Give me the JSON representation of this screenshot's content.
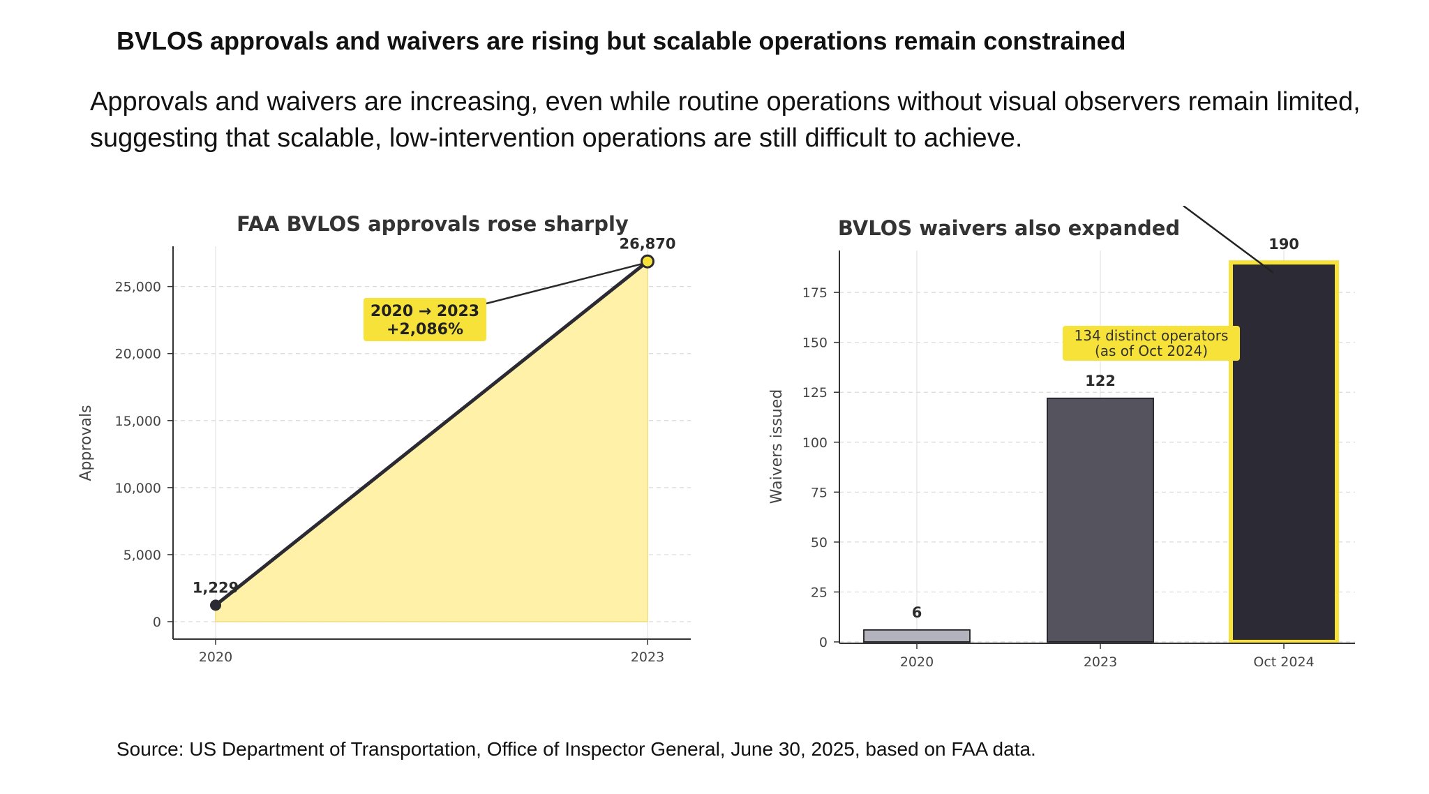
{
  "slide": {
    "title": "BVLOS approvals and waivers are rising but scalable operations remain constrained",
    "subtitle": "Approvals and waivers are increasing, even while routine operations without visual observers remain limited, suggesting that scalable, low-intervention operations are still difficult to achieve.",
    "source": "Source: US Department of Transportation, Office of Inspector General, June 30, 2025, based on FAA data."
  },
  "colors": {
    "highlight": "#f7e23a",
    "area_fill": "#fff2a8",
    "line": "#2b2a33",
    "bar_2020": "#b3b3be",
    "bar_2023": "#55545e",
    "bar_oct2024": "#2c2b35"
  },
  "chart_data": [
    {
      "type": "area",
      "title": "FAA BVLOS approvals rose sharply",
      "xlabel": "",
      "ylabel": "Approvals",
      "x": [
        "2020",
        "2023"
      ],
      "values": [
        1229,
        26870
      ],
      "data_labels": [
        "1,229",
        "26,870"
      ],
      "ylim": [
        0,
        28000
      ],
      "yticks": [
        0,
        5000,
        10000,
        15000,
        20000,
        25000
      ],
      "ytick_labels": [
        "0",
        "5,000",
        "10,000",
        "15,000",
        "20,000",
        "25,000"
      ],
      "grid": true,
      "annotation": {
        "line1": "2020 → 2023",
        "line2": "+2,086%"
      }
    },
    {
      "type": "bar",
      "title": "BVLOS waivers also expanded",
      "xlabel": "",
      "ylabel": "Waivers issued",
      "categories": [
        "2020",
        "2023",
        "Oct 2024"
      ],
      "values": [
        6,
        122,
        190
      ],
      "data_labels": [
        "6",
        "122",
        "190"
      ],
      "ylim": [
        0,
        196
      ],
      "yticks": [
        0,
        25,
        50,
        75,
        100,
        125,
        150,
        175
      ],
      "ytick_labels": [
        "0",
        "25",
        "50",
        "75",
        "100",
        "125",
        "150",
        "175"
      ],
      "grid": true,
      "highlighted_category": "Oct 2024",
      "annotation": {
        "line1": "134 distinct operators",
        "line2": "(as of Oct 2024)"
      }
    }
  ]
}
